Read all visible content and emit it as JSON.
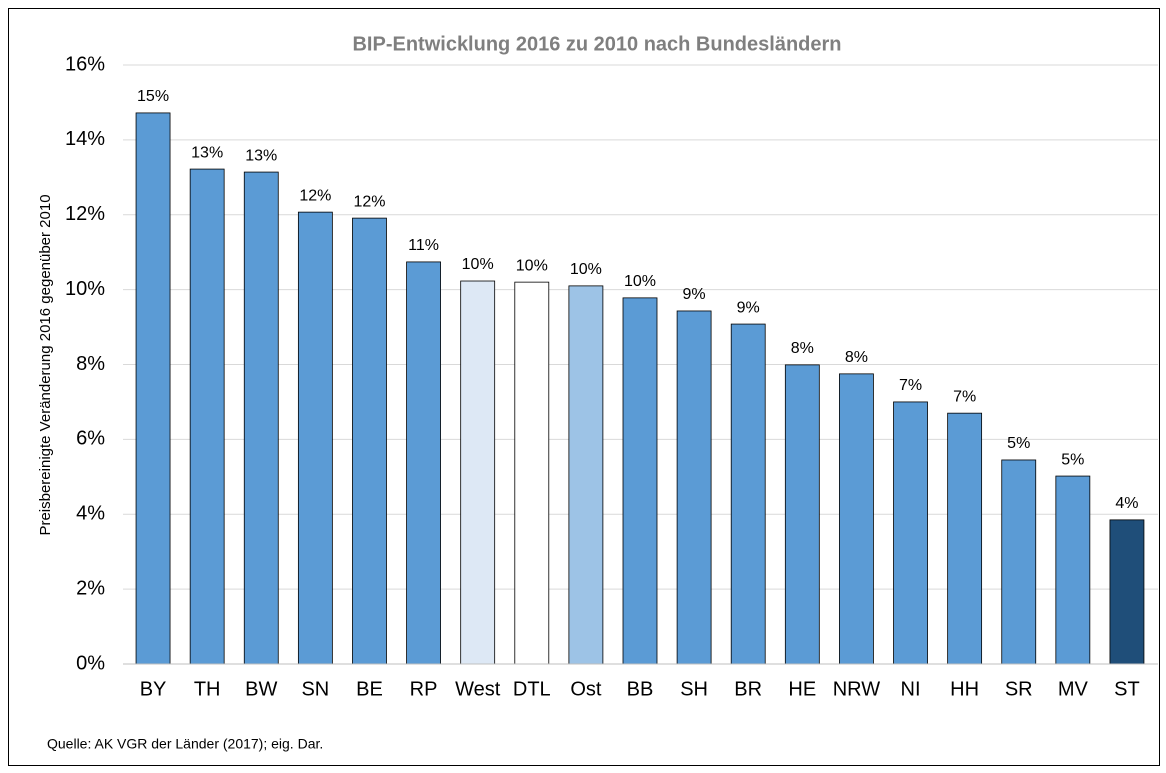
{
  "chart_data": {
    "type": "bar",
    "title": "BIP-Entwicklung  2016 zu 2010 nach Bundesländern",
    "y_label": "Preisbereinigte Veränderung  2016 gegenüber 2010",
    "source": "Quelle: AK VGR der Länder (2017); eig. Dar.",
    "categories": [
      "BY",
      "TH",
      "BW",
      "SN",
      "BE",
      "RP",
      "West",
      "DTL",
      "Ost",
      "BB",
      "SH",
      "BR",
      "HE",
      "NRW",
      "NI",
      "HH",
      "SR",
      "MV",
      "ST"
    ],
    "values": [
      14.72,
      13.22,
      13.14,
      12.07,
      11.91,
      10.74,
      10.23,
      10.2,
      10.1,
      9.78,
      9.43,
      9.08,
      7.99,
      7.75,
      7.0,
      6.7,
      5.45,
      5.02,
      3.85
    ],
    "value_labels": [
      "15%",
      "13%",
      "13%",
      "12%",
      "12%",
      "11%",
      "10%",
      "10%",
      "10%",
      "10%",
      "9%",
      "9%",
      "8%",
      "8%",
      "7%",
      "7%",
      "5%",
      "5%",
      "4%"
    ],
    "colors": [
      "#5b9bd5",
      "#5b9bd5",
      "#5b9bd5",
      "#5b9bd5",
      "#5b9bd5",
      "#5b9bd5",
      "#dde8f5",
      "#ffffff",
      "#9dc3e6",
      "#5b9bd5",
      "#5b9bd5",
      "#5b9bd5",
      "#5b9bd5",
      "#5b9bd5",
      "#5b9bd5",
      "#5b9bd5",
      "#5b9bd5",
      "#5b9bd5",
      "#1f4e79"
    ],
    "ylim": [
      0,
      16
    ],
    "yticks": [
      {
        "value": 0,
        "label": "0%"
      },
      {
        "value": 2,
        "label": "2%"
      },
      {
        "value": 4,
        "label": "4%"
      },
      {
        "value": 6,
        "label": "6%"
      },
      {
        "value": 8,
        "label": "8%"
      },
      {
        "value": 10,
        "label": "10%"
      },
      {
        "value": 12,
        "label": "12%"
      },
      {
        "value": 14,
        "label": "14%"
      },
      {
        "value": 16,
        "label": "16%"
      }
    ],
    "grid": true
  }
}
